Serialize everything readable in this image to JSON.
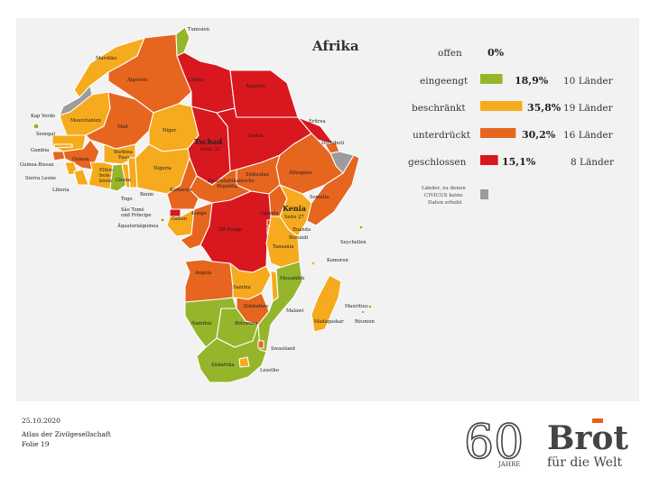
{
  "map": {
    "title": "Afrika",
    "colors": {
      "offen": "#ffffff",
      "eingeengt": "#95b52b",
      "beschraenkt": "#f5ab1d",
      "unterdrueckt": "#e6651f",
      "geschlossen": "#d8171f",
      "keine_daten": "#9c9c9c",
      "water": "#f2f2f2",
      "border": "#ffffff"
    },
    "legend": [
      {
        "label": "offen",
        "percent": "0%",
        "count": "",
        "value": 0
      },
      {
        "label": "eingeengt",
        "percent": "18,9%",
        "count": "10 Länder",
        "value": 18.9
      },
      {
        "label": "beschränkt",
        "percent": "35,8%",
        "count": "19 Länder",
        "value": 35.8
      },
      {
        "label": "unterdrückt",
        "percent": "30,2%",
        "count": "16 Länder",
        "value": 30.2
      },
      {
        "label": "geschlossen",
        "percent": "15,1%",
        "count": "8 Länder",
        "value": 15.1
      }
    ],
    "no_data_note_1": "Länder, zu denen",
    "no_data_note_2": "CIVICUS keine",
    "no_data_note_3": "Daten erhebt",
    "labels": {
      "tunesien": "Tunesien",
      "marokko": "Marokko",
      "algerien": "Algerien",
      "libyen": "Libyen",
      "aegypten": "Ägypten",
      "kap_verde": "Kap Verde",
      "mauretanien": "Mauretanien",
      "mali": "Mali",
      "niger": "Niger",
      "tschad": "Tschad",
      "tschad_seite": "Seite 33",
      "sudan": "Sudan",
      "eritrea": "Eritrea",
      "dschibuti": "Dschibuti",
      "senegal": "Senegal",
      "gambia": "Gambia",
      "guinea_bissau": "Guinea-Bissau",
      "guinea": "Guinea",
      "sierra_leone": "Sierra Leone",
      "liberia": "Liberia",
      "burkina_faso_1": "Burkina",
      "burkina_faso_2": "Faso",
      "elfenbein_1": "Elfen-",
      "elfenbein_2": "bein-",
      "elfenbein_3": "küste",
      "ghana": "Ghana",
      "togo": "Togo",
      "benin": "Benin",
      "nigeria": "Nigeria",
      "kamerun": "Kamerun",
      "zar_1": "Zentralafrikanische",
      "zar_2": "Republik",
      "suedsudan": "Südsudan",
      "aethiopien": "Äthiopien",
      "somalia": "Somalia",
      "sao_tome_1": "São Tomé",
      "sao_tome_2": "und Príncipe",
      "aequatorialguinea": "Äquatorialguinea",
      "gabun": "Gabun",
      "kongo": "Kongo",
      "dr_kongo": "DR Kongo",
      "uganda": "Uganda",
      "kenia": "Kenia",
      "kenia_seite": "Seite 27",
      "ruanda": "Ruanda",
      "burundi": "Burundi",
      "seychellen": "Seychellen",
      "tansania": "Tansania",
      "komoren": "Komoren",
      "angola": "Angola",
      "sambia": "Sambia",
      "mosambik": "Mosambik",
      "malawi": "Malawi",
      "simbabwe": "Simbabwe",
      "namibia": "Namibia",
      "botswana": "Botswana",
      "madagaskar": "Madagaskar",
      "mauritius": "Mauritius",
      "reunion": "Réunion",
      "swasiland": "Swasiland",
      "lesotho": "Lesotho",
      "suedafrika": "Südafrika"
    }
  },
  "footer": {
    "date": "25.10.2020",
    "source": "Atlas der Zivilgesellschaft",
    "page": "Folie 19"
  },
  "logo": {
    "number": "60",
    "years": "JAHRE",
    "brand_1": "Brot",
    "brand_2": "für die Welt",
    "accent": "#e85e1a"
  }
}
